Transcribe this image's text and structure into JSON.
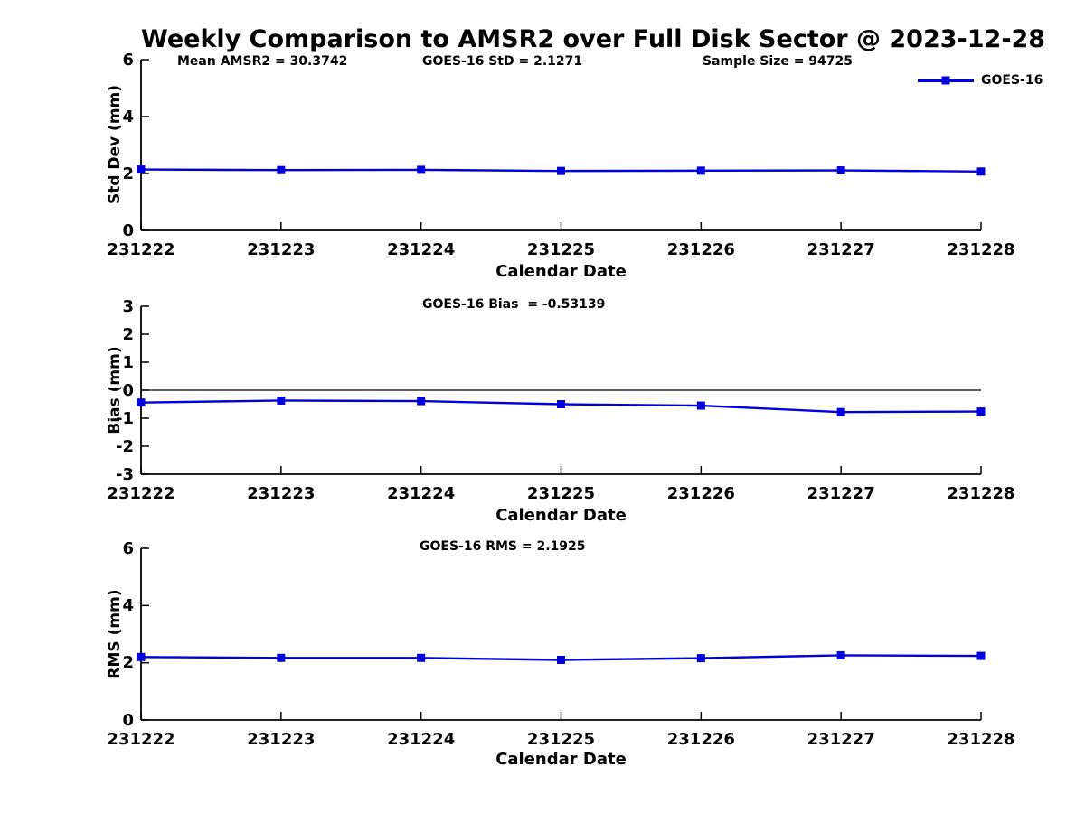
{
  "title": "Weekly Comparison to AMSR2 over Full Disk Sector @ 2023-12-28",
  "legend": {
    "label": "GOES-16",
    "color": "#0000dd"
  },
  "colors": {
    "series": "#0000dd",
    "axis": "#000000",
    "text": "#000000",
    "background": "#ffffff"
  },
  "x_categories": [
    "231222",
    "231223",
    "231224",
    "231225",
    "231226",
    "231227",
    "231228"
  ],
  "stats": {
    "mean_amsr2": "30.3742",
    "goes16_std": "2.1271",
    "sample_size": "94725",
    "goes16_bias": "-0.53139",
    "goes16_rms": "2.1925"
  },
  "chart_data": [
    {
      "type": "line",
      "annotations": [
        "Mean AMSR2 = 30.3742",
        "GOES-16 StD = 2.1271",
        "Sample Size = 94725"
      ],
      "xlabel": "Calendar Date",
      "ylabel": "Std Dev (mm)",
      "ylim": [
        0,
        6
      ],
      "yticks": [
        0,
        2,
        4,
        6
      ],
      "zero_line": false,
      "grid": false,
      "legend_position": "top-right",
      "categories": [
        "231222",
        "231223",
        "231224",
        "231225",
        "231226",
        "231227",
        "231228"
      ],
      "series": [
        {
          "name": "GOES-16",
          "values": [
            2.14,
            2.12,
            2.13,
            2.09,
            2.1,
            2.11,
            2.07
          ]
        }
      ]
    },
    {
      "type": "line",
      "title": "GOES-16 Bias  = -0.53139",
      "xlabel": "Calendar Date",
      "ylabel": "Bias (mm)",
      "ylim": [
        -3,
        3
      ],
      "yticks": [
        -3,
        -2,
        -1,
        0,
        1,
        2,
        3
      ],
      "zero_line": true,
      "grid": false,
      "categories": [
        "231222",
        "231223",
        "231224",
        "231225",
        "231226",
        "231227",
        "231228"
      ],
      "series": [
        {
          "name": "GOES-16",
          "values": [
            -0.44,
            -0.37,
            -0.39,
            -0.5,
            -0.55,
            -0.78,
            -0.76
          ]
        }
      ]
    },
    {
      "type": "line",
      "title": "GOES-16 RMS = 2.1925",
      "xlabel": "Calendar Date",
      "ylabel": "RMS (mm)",
      "ylim": [
        0,
        6
      ],
      "yticks": [
        0,
        2,
        4,
        6
      ],
      "zero_line": false,
      "grid": false,
      "categories": [
        "231222",
        "231223",
        "231224",
        "231225",
        "231226",
        "231227",
        "231228"
      ],
      "series": [
        {
          "name": "GOES-16",
          "values": [
            2.2,
            2.17,
            2.17,
            2.1,
            2.16,
            2.26,
            2.24
          ]
        }
      ]
    }
  ]
}
